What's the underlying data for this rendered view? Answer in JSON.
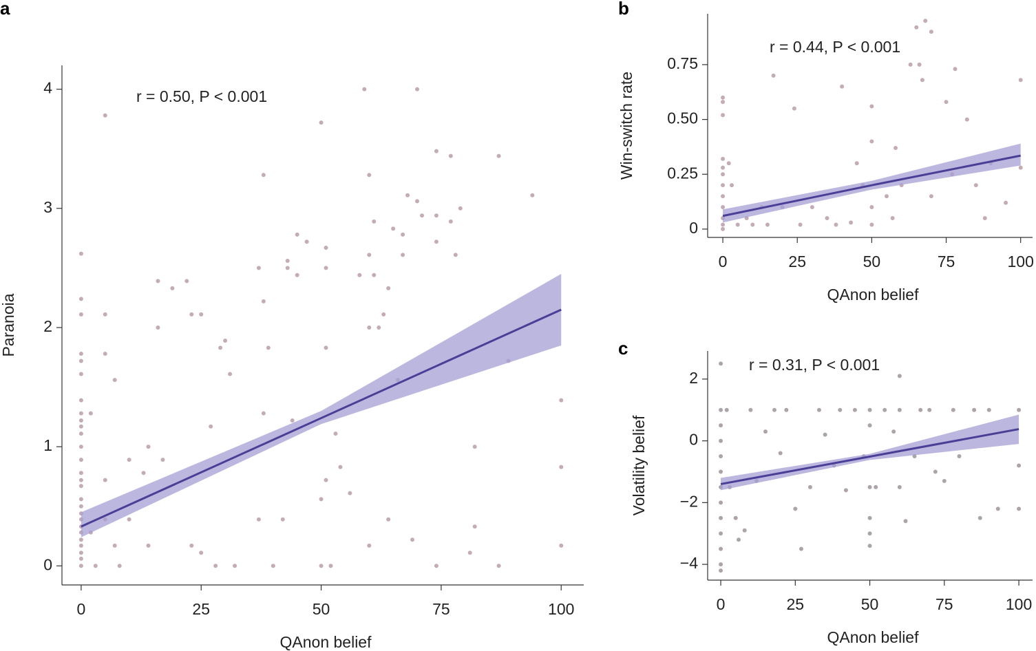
{
  "chart_data": [
    {
      "type": "scatter",
      "panel_label": "a",
      "annotation": "r = 0.50, P < 0.001",
      "x_label": "QAnon belief",
      "y_label": "Paranoia",
      "xlim": [
        -4,
        104.7
      ],
      "ylim": [
        -0.16,
        4.2
      ],
      "xticks": [
        0,
        25,
        50,
        75,
        100
      ],
      "yticks": [
        0,
        1,
        2,
        3,
        4
      ],
      "point_color": "#8a5a6e",
      "fit_color": "#4a3f96",
      "band_color": "#a59fd4",
      "x": [
        0,
        0,
        0,
        0,
        0,
        0,
        0,
        0,
        0,
        0,
        0,
        0,
        0,
        0,
        0,
        0,
        0,
        0,
        0,
        0,
        0,
        0,
        0,
        0,
        0,
        0,
        0,
        2,
        2,
        3,
        5,
        5,
        5,
        5,
        5,
        7,
        7,
        8,
        10,
        10,
        13,
        14,
        14,
        16,
        16,
        17,
        19,
        22,
        23,
        23,
        25,
        25,
        27,
        28,
        29,
        30,
        31,
        32,
        37,
        37,
        38,
        38,
        38,
        39,
        40,
        42,
        43,
        43,
        44,
        45,
        45,
        47,
        50,
        50,
        50,
        51,
        51,
        51,
        51,
        52,
        53,
        54,
        56,
        58,
        59,
        60,
        60,
        60,
        60,
        61,
        61,
        62,
        63,
        64,
        64,
        65,
        66,
        67,
        67,
        68,
        69,
        70,
        70,
        71,
        74,
        74,
        74,
        74,
        77,
        77,
        78,
        79,
        81,
        82,
        82,
        87,
        87,
        89,
        94,
        100,
        100,
        100
      ],
      "values": [
        2.62,
        2.24,
        2.11,
        1.78,
        1.72,
        1.61,
        1.39,
        1.28,
        1.22,
        1.17,
        1.11,
        1.0,
        0.89,
        0.78,
        0.72,
        0.67,
        0.56,
        0.5,
        0.44,
        0.39,
        0.33,
        0.28,
        0.22,
        0.17,
        0.11,
        0.06,
        0,
        1.28,
        0.28,
        0,
        3.78,
        2.11,
        1.78,
        0.72,
        0.39,
        1.56,
        0.17,
        0,
        0.89,
        0.39,
        0.78,
        1.0,
        0.17,
        2.39,
        2.0,
        0.89,
        2.33,
        2.39,
        2.11,
        0.17,
        2.11,
        0.11,
        1.17,
        0,
        1.83,
        1.89,
        1.61,
        0,
        2.5,
        0.39,
        3.28,
        2.22,
        1.28,
        1.83,
        0,
        0.39,
        2.56,
        2.5,
        1.22,
        2.44,
        2.78,
        2.72,
        3.72,
        0.56,
        0,
        2.67,
        2.5,
        1.83,
        0.72,
        0,
        1.11,
        0.83,
        0.61,
        2.44,
        4.0,
        3.28,
        2.61,
        2.0,
        0.17,
        2.89,
        2.44,
        2.0,
        2.11,
        2.33,
        0.39,
        2.83,
        1.56,
        2.61,
        2.78,
        3.11,
        0.22,
        4.0,
        3.06,
        2.94,
        3.48,
        2.94,
        2.72,
        0,
        3.44,
        2.89,
        2.61,
        3.0,
        0.11,
        1.0,
        0.33,
        3.44,
        0,
        1.72,
        3.11,
        1.39,
        0.83,
        0.17
      ],
      "fit_x": [
        0,
        50,
        100
      ],
      "fit_y": [
        0.33,
        1.24,
        2.15
      ],
      "ci_lower": [
        0.24,
        1.19,
        1.85
      ],
      "ci_upper": [
        0.45,
        1.3,
        2.45
      ]
    },
    {
      "type": "scatter",
      "panel_label": "b",
      "annotation": "r = 0.44, P < 0.001",
      "x_label": "QAnon belief",
      "y_label": "Win-switch rate",
      "xlim": [
        -5.1,
        104
      ],
      "ylim": [
        -0.038,
        0.982
      ],
      "xticks": [
        0,
        25,
        50,
        75,
        100
      ],
      "yticks": [
        0,
        0.25,
        {
          "value": 0.5,
          "label": "0.50"
        },
        0.75
      ],
      "point_color": "#8a5a6e",
      "fit_color": "#4a3f96",
      "band_color": "#a59fd4",
      "x": [
        0,
        0,
        0,
        0,
        0,
        0,
        0,
        0,
        0,
        0,
        0,
        0,
        2,
        3,
        5,
        8,
        10,
        13,
        15,
        17,
        20,
        24,
        26,
        30,
        35,
        38,
        40,
        43,
        45,
        47,
        50,
        50,
        50,
        50,
        55,
        57,
        58,
        60,
        63,
        65,
        66,
        67,
        68,
        70,
        70,
        75,
        77,
        78,
        82,
        85,
        88,
        90,
        95,
        100,
        100
      ],
      "values": [
        0.6,
        0.58,
        0.52,
        0.32,
        0.28,
        0.25,
        0.2,
        0.15,
        0.1,
        0.05,
        0.02,
        0,
        0.3,
        0.2,
        0.02,
        0.05,
        0.02,
        0.1,
        0.02,
        0.7,
        0.1,
        0.55,
        0.02,
        0.1,
        0.05,
        0.02,
        0.65,
        0.03,
        0.3,
        0.2,
        0.56,
        0.4,
        0.1,
        0.02,
        0.15,
        0.05,
        0.37,
        0.2,
        0.75,
        0.92,
        0.75,
        0.68,
        0.95,
        0.9,
        0.15,
        0.58,
        0.25,
        0.73,
        0.5,
        0.2,
        0.05,
        0.3,
        0.12,
        0.68,
        0.28
      ],
      "fit_x": [
        0,
        50,
        100
      ],
      "fit_y": [
        0.06,
        0.2,
        0.335
      ],
      "ci_lower": [
        0.03,
        0.18,
        0.29
      ],
      "ci_upper": [
        0.09,
        0.22,
        0.39
      ]
    },
    {
      "type": "scatter",
      "panel_label": "c",
      "annotation": "r = 0.31, P < 0.001",
      "x_label": "QAnon belief",
      "y_label": "Volatility belief",
      "xlim": [
        -4.4,
        104.6
      ],
      "ylim": [
        -4.51,
        2.91
      ],
      "xticks": [
        0,
        25,
        50,
        75,
        100
      ],
      "yticks": [
        {
          "value": -4,
          "label": "−4"
        },
        {
          "value": -2,
          "label": "−2"
        },
        0,
        2
      ],
      "point_color": "#5a4a55",
      "fit_color": "#4a3f96",
      "band_color": "#a59fd4",
      "x": [
        0,
        0,
        0,
        0,
        0,
        0,
        0,
        0,
        0,
        0,
        0,
        0,
        0,
        2,
        3,
        5,
        6,
        8,
        10,
        12,
        15,
        18,
        20,
        22,
        25,
        27,
        30,
        33,
        35,
        38,
        40,
        42,
        45,
        48,
        50,
        50,
        50,
        50,
        50,
        50,
        52,
        55,
        58,
        60,
        60,
        60,
        62,
        65,
        67,
        70,
        72,
        75,
        78,
        80,
        85,
        87,
        90,
        93,
        100,
        100,
        100
      ],
      "values": [
        2.5,
        1.0,
        0.5,
        0,
        -0.5,
        -1,
        -1.5,
        -2,
        -2.5,
        -3,
        -3.5,
        -4,
        -4.2,
        1.0,
        -1.5,
        -2.5,
        -3.2,
        -2.9,
        1.0,
        -1.3,
        0.3,
        1.0,
        -0.4,
        1.0,
        -2.2,
        -3.5,
        -1.5,
        1.0,
        0.2,
        -0.8,
        1.0,
        -1.6,
        1.0,
        -0.5,
        1.0,
        0.5,
        -1.5,
        -2.5,
        -3.0,
        -3.4,
        -1.5,
        1.0,
        0.3,
        2.1,
        1.0,
        -1.5,
        -2.6,
        -0.5,
        1.0,
        1.0,
        -1.0,
        -1.3,
        1.0,
        -0.5,
        1.0,
        -2.5,
        1.0,
        -2.2,
        1.0,
        -0.8,
        -2.2
      ],
      "fit_x": [
        0,
        50,
        100
      ],
      "fit_y": [
        -1.4,
        -0.51,
        0.38
      ],
      "ci_lower": [
        -1.6,
        -0.62,
        -0.1
      ],
      "ci_upper": [
        -1.2,
        -0.42,
        0.85
      ]
    }
  ]
}
